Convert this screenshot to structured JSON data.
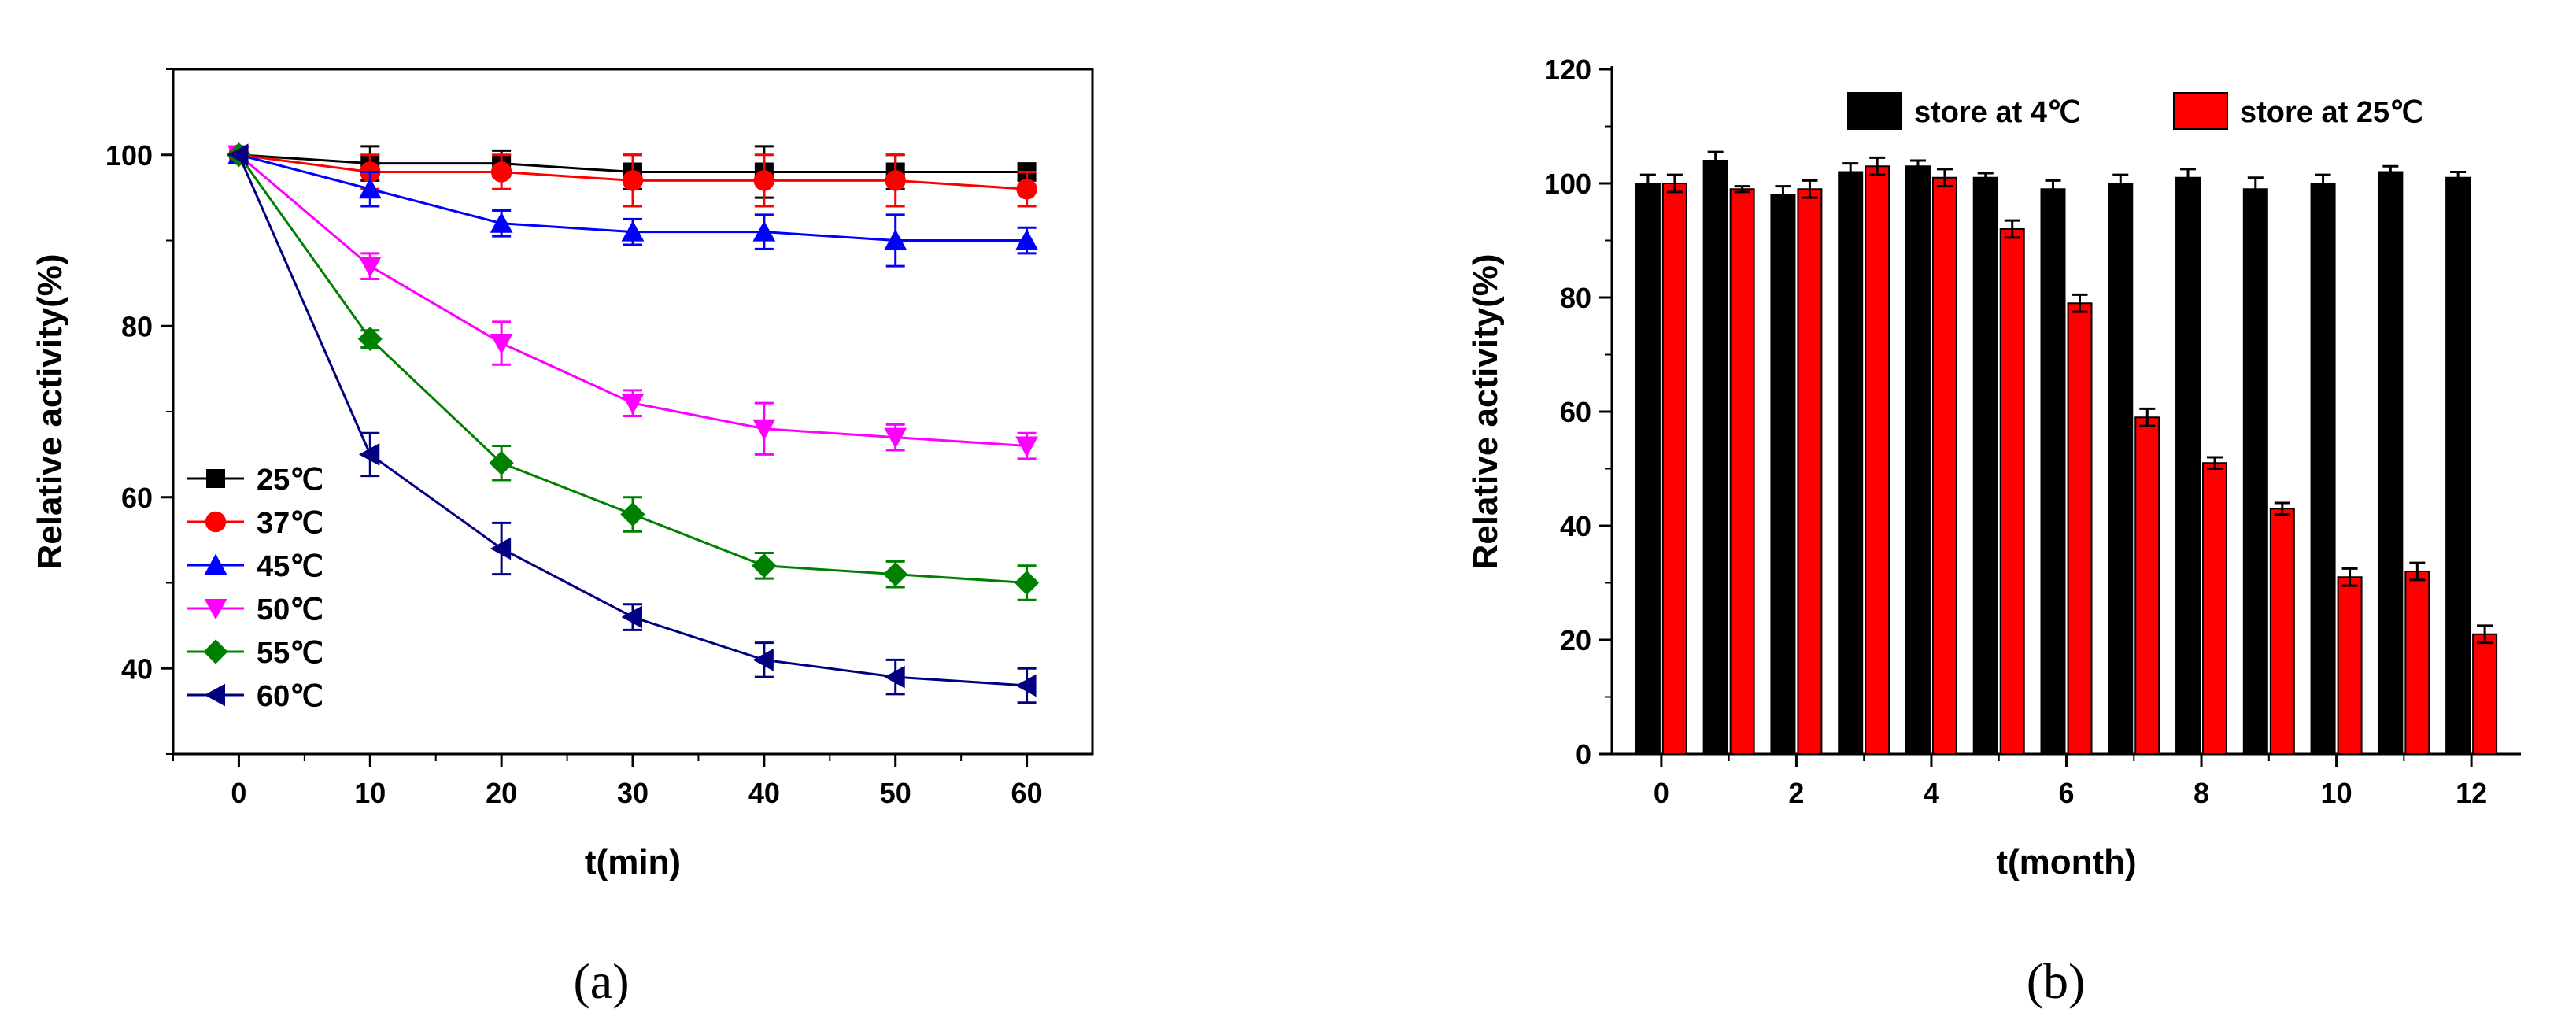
{
  "chart_data": [
    {
      "type": "line",
      "panel_label": "(a)",
      "xlabel": "t(min)",
      "ylabel": "Relative activity(%)",
      "xlim": [
        -5,
        65
      ],
      "ylim": [
        30,
        110
      ],
      "xticks": [
        0,
        10,
        20,
        30,
        40,
        50,
        60
      ],
      "yticks": [
        40,
        60,
        80,
        100
      ],
      "legend_position": "bottom-left",
      "x": [
        0,
        10,
        20,
        30,
        40,
        50,
        60
      ],
      "series": [
        {
          "name": "25℃",
          "color": "#000000",
          "marker": "square",
          "values": [
            100,
            99,
            99,
            98,
            98,
            98,
            98
          ],
          "errors": [
            0.5,
            2,
            1.5,
            2,
            3,
            2,
            1
          ]
        },
        {
          "name": "37℃",
          "color": "#ff0000",
          "marker": "circle",
          "values": [
            100,
            98,
            98,
            97,
            97,
            97,
            96
          ],
          "errors": [
            0.5,
            2,
            2,
            3,
            3,
            3,
            2
          ]
        },
        {
          "name": "45℃",
          "color": "#0000ff",
          "marker": "triangle-up",
          "values": [
            100,
            96,
            92,
            91,
            91,
            90,
            90
          ],
          "errors": [
            0.5,
            2,
            1.5,
            1.5,
            2,
            3,
            1.5
          ]
        },
        {
          "name": "50℃",
          "color": "#ff00ff",
          "marker": "triangle-down",
          "values": [
            100,
            87,
            78,
            71,
            68,
            67,
            66
          ],
          "errors": [
            0.5,
            1.5,
            2.5,
            1.5,
            3,
            1.5,
            1.5
          ]
        },
        {
          "name": "55℃",
          "color": "#008000",
          "marker": "diamond",
          "values": [
            100,
            78.5,
            64,
            58,
            52,
            51,
            50
          ],
          "errors": [
            0.5,
            1,
            2,
            2,
            1.5,
            1.5,
            2
          ]
        },
        {
          "name": "60℃",
          "color": "#000080",
          "marker": "triangle-left",
          "values": [
            100,
            65,
            54,
            46,
            41,
            39,
            38
          ],
          "errors": [
            0.5,
            2.5,
            3,
            1.5,
            2,
            2,
            2
          ]
        }
      ]
    },
    {
      "type": "bar",
      "panel_label": "(b)",
      "xlabel": "t(month)",
      "ylabel": "Relative activity(%)",
      "ylim": [
        0,
        120
      ],
      "yticks": [
        0,
        20,
        40,
        60,
        80,
        100,
        120
      ],
      "xtick_labels": [
        "0",
        "2",
        "4",
        "6",
        "8",
        "10",
        "12"
      ],
      "legend_position": "top",
      "categories": [
        0,
        1,
        2,
        3,
        4,
        5,
        6,
        7,
        8,
        9,
        10,
        11,
        12
      ],
      "series": [
        {
          "name": "store at 4℃",
          "color": "#000000",
          "values": [
            100,
            104,
            98,
            102,
            103,
            101,
            99,
            100,
            101,
            99,
            100,
            102,
            101
          ],
          "errors": [
            1.5,
            1.5,
            1.5,
            1.5,
            1,
            0.8,
            1.5,
            1.5,
            1.5,
            2,
            1.5,
            1,
            1
          ]
        },
        {
          "name": "store at 25℃",
          "color": "#ff0000",
          "values": [
            100,
            99,
            99,
            103,
            101,
            92,
            79,
            59,
            51,
            43,
            31,
            32,
            21
          ],
          "errors": [
            1.5,
            0.5,
            1.5,
            1.5,
            1.5,
            1.5,
            1.5,
            1.5,
            1,
            1,
            1.5,
            1.5,
            1.5
          ]
        }
      ]
    }
  ]
}
